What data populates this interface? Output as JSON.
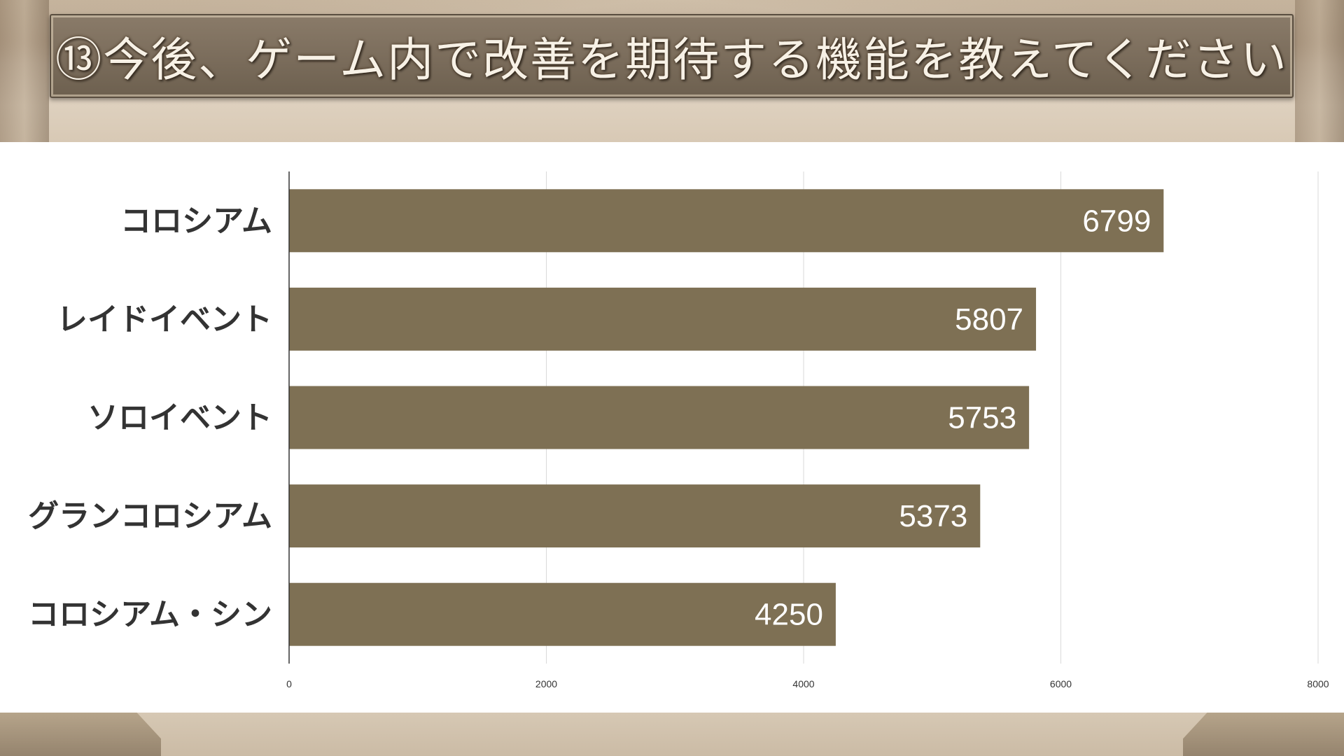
{
  "title": "⑬今後、ゲーム内で改善を期待する機能を教えてください",
  "colors": {
    "bar": "#7e7054",
    "grid": "#d9d9d9",
    "axis": "#333333"
  },
  "chart_data": {
    "type": "bar",
    "orientation": "horizontal",
    "categories": [
      "コロシアム",
      "レイドイベント",
      "ソロイベント",
      "グランコロシアム",
      "コロシアム・シン"
    ],
    "values": [
      6799,
      5807,
      5753,
      5373,
      4250
    ],
    "data_labels": [
      "6799",
      "5807",
      "5753",
      "5373",
      "4250"
    ],
    "xlim": [
      0,
      8000
    ],
    "xticks": [
      0,
      2000,
      4000,
      6000,
      8000
    ],
    "xtick_labels": [
      "0",
      "2000",
      "4000",
      "6000",
      "8000"
    ],
    "grid": true,
    "legend": "none"
  }
}
